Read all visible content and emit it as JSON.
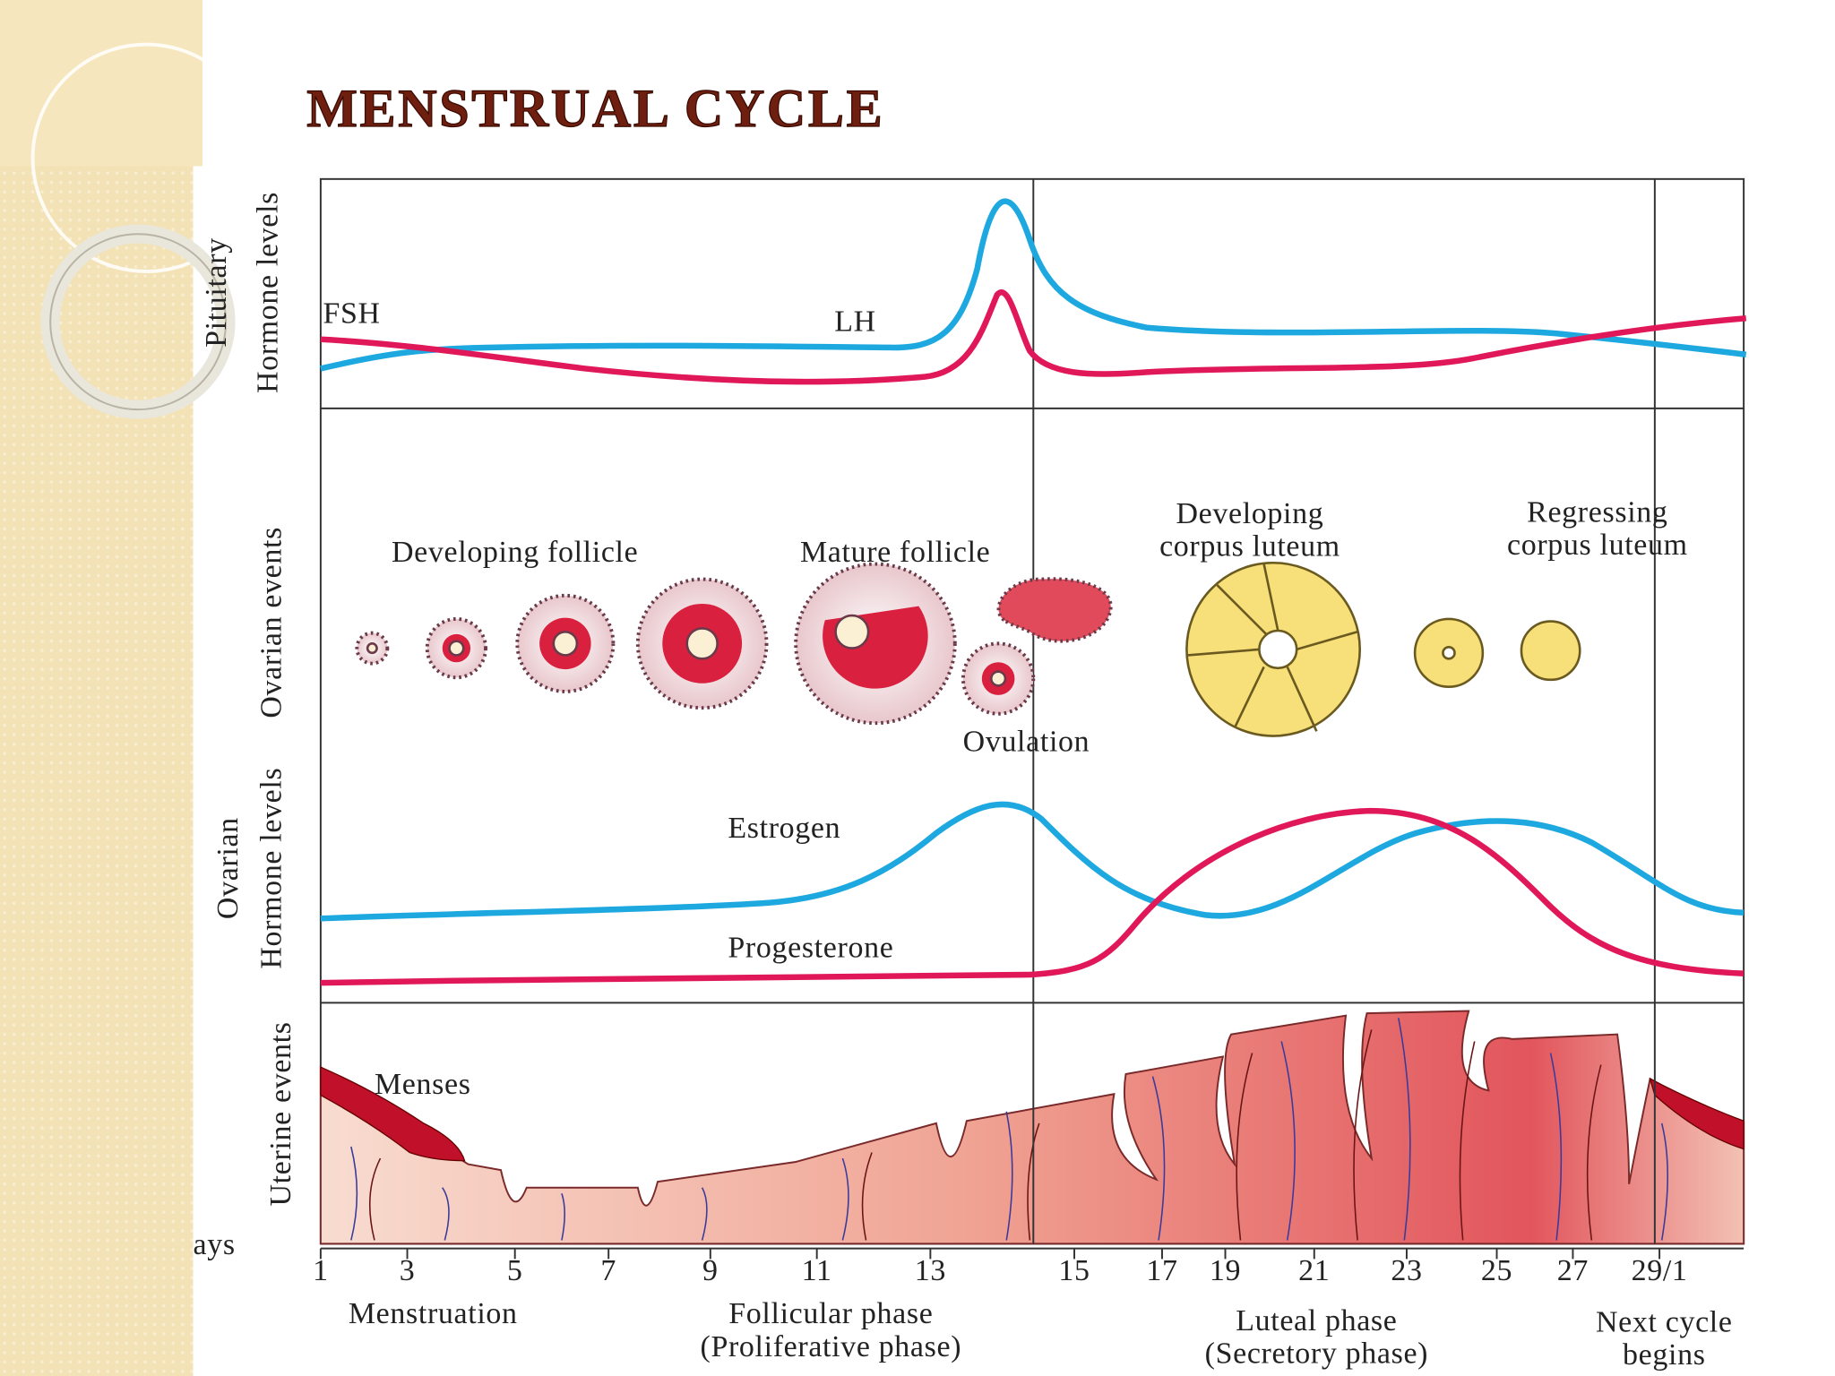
{
  "title": "MENSTRUAL CYCLE",
  "panels": {
    "pituitary": [
      "Pituitary",
      "Hormone levels"
    ],
    "ovarian_events": [
      "Ovarian events"
    ],
    "ovarian_hormones": [
      "Ovarian",
      "Hormone levels"
    ],
    "uterine_events": [
      "Uterine events"
    ]
  },
  "hormones": {
    "fsh": "FSH",
    "lh": "LH",
    "estrogen": "Estrogen",
    "progesterone": "Progesterone"
  },
  "ovarian_stages": {
    "developing_follicle": "Developing follicle",
    "mature_follicle": "Mature follicle",
    "ovulation": "Ovulation",
    "developing_corpus_luteum": [
      "Developing",
      "corpus luteum"
    ],
    "regressing_corpus_luteum": [
      "Regressing",
      "corpus luteum"
    ]
  },
  "menses": "Menses",
  "days": {
    "label": "ays",
    "ticks": [
      "1",
      "3",
      "5",
      "7",
      "9",
      "11",
      "13",
      "15",
      "17",
      "19",
      "21",
      "23",
      "25",
      "27",
      "29/1"
    ]
  },
  "phases": [
    [
      "Menstruation"
    ],
    [
      "Follicular phase",
      "(Proliferative phase)"
    ],
    [
      "Luteal phase",
      "(Secretory phase)"
    ],
    [
      "Next cycle",
      "begins"
    ]
  ]
}
